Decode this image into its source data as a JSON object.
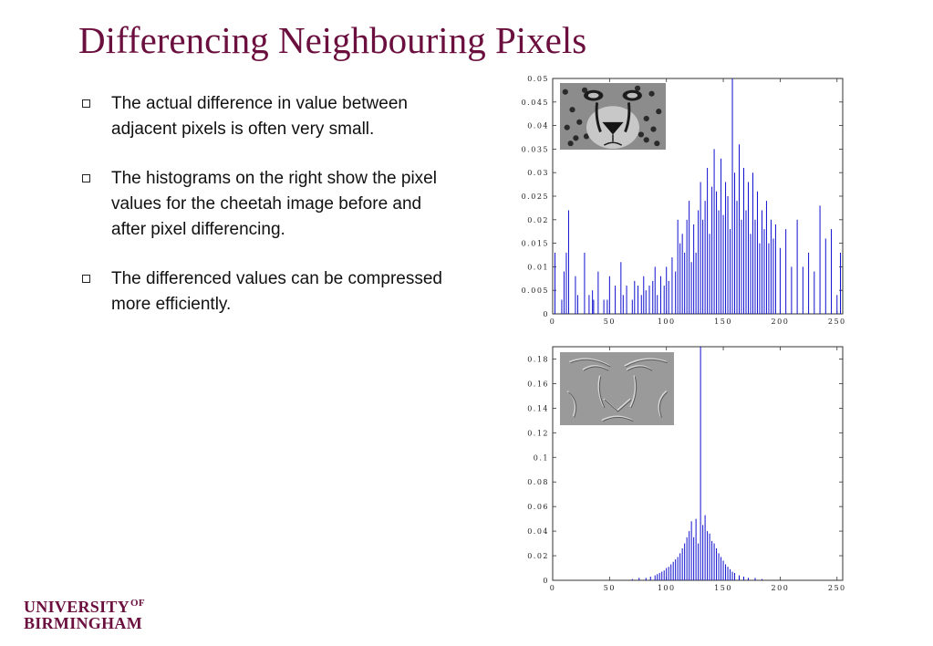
{
  "slide": {
    "title": "Differencing Neighbouring Pixels",
    "bullets": [
      "The actual difference in value between adjacent pixels is often very small.",
      "The histograms on the right show the pixel values for the cheetah image before and after pixel differencing.",
      "The differenced values can be compressed more efficiently."
    ]
  },
  "logo": {
    "line1": "UNIVERSITY",
    "of": "OF",
    "line2": "BIRMINGHAM"
  },
  "colors": {
    "title": "#6b0f3e",
    "bars": "#0000cc",
    "logo": "#6b0f3e"
  },
  "chart_data": [
    {
      "type": "bar",
      "title": "",
      "xlabel": "",
      "ylabel": "",
      "xlim": [
        0,
        255
      ],
      "ylim": [
        0,
        0.05
      ],
      "xticks": [
        0,
        50,
        100,
        150,
        200,
        250
      ],
      "yticks": [
        0,
        0.005,
        0.01,
        0.015,
        0.02,
        0.025,
        0.03,
        0.035,
        0.04,
        0.045,
        0.05
      ],
      "ytick_labels": [
        "0",
        "0.005",
        "0.01",
        "0.015",
        "0.02",
        "0.025",
        "0.03",
        "0.035",
        "0.04",
        "0.045",
        "0.05"
      ],
      "x": [
        2,
        8,
        10,
        12,
        14,
        20,
        22,
        28,
        32,
        35,
        36,
        40,
        45,
        48,
        50,
        55,
        60,
        62,
        65,
        70,
        72,
        75,
        78,
        80,
        82,
        85,
        88,
        90,
        92,
        95,
        98,
        100,
        102,
        105,
        108,
        110,
        112,
        114,
        116,
        118,
        120,
        122,
        124,
        126,
        128,
        130,
        132,
        134,
        136,
        138,
        140,
        142,
        144,
        146,
        148,
        150,
        152,
        154,
        156,
        158,
        160,
        162,
        164,
        166,
        168,
        170,
        172,
        174,
        176,
        178,
        180,
        182,
        184,
        186,
        188,
        190,
        192,
        194,
        196,
        200,
        205,
        210,
        215,
        220,
        225,
        230,
        235,
        240,
        245,
        250,
        253
      ],
      "values": [
        0.013,
        0.003,
        0.009,
        0.013,
        0.022,
        0.008,
        0.004,
        0.013,
        0.004,
        0.005,
        0.003,
        0.009,
        0.003,
        0.003,
        0.008,
        0.006,
        0.011,
        0.004,
        0.006,
        0.003,
        0.007,
        0.006,
        0.004,
        0.008,
        0.005,
        0.006,
        0.007,
        0.01,
        0.004,
        0.008,
        0.006,
        0.01,
        0.007,
        0.012,
        0.009,
        0.02,
        0.015,
        0.017,
        0.013,
        0.02,
        0.024,
        0.011,
        0.019,
        0.013,
        0.022,
        0.028,
        0.02,
        0.024,
        0.031,
        0.017,
        0.027,
        0.035,
        0.026,
        0.022,
        0.033,
        0.021,
        0.028,
        0.025,
        0.018,
        0.05,
        0.03,
        0.024,
        0.036,
        0.02,
        0.031,
        0.022,
        0.028,
        0.017,
        0.03,
        0.02,
        0.026,
        0.015,
        0.022,
        0.018,
        0.024,
        0.015,
        0.02,
        0.016,
        0.019,
        0.014,
        0.018,
        0.01,
        0.02,
        0.01,
        0.013,
        0.009,
        0.023,
        0.016,
        0.018,
        0.004,
        0.013
      ]
    },
    {
      "type": "bar",
      "title": "",
      "xlabel": "",
      "ylabel": "",
      "xlim": [
        0,
        255
      ],
      "ylim": [
        0,
        0.19
      ],
      "xticks": [
        0,
        50,
        100,
        150,
        200,
        250
      ],
      "yticks": [
        0,
        0.02,
        0.04,
        0.06,
        0.08,
        0.1,
        0.12,
        0.14,
        0.16,
        0.18
      ],
      "ytick_labels": [
        "0",
        "0.02",
        "0.04",
        "0.06",
        "0.08",
        "0.1",
        "0.12",
        "0.14",
        "0.16",
        "0.18"
      ],
      "x": [
        70,
        76,
        82,
        86,
        90,
        92,
        94,
        96,
        98,
        100,
        102,
        104,
        106,
        108,
        110,
        112,
        114,
        116,
        118,
        120,
        122,
        124,
        126,
        128,
        130,
        132,
        134,
        136,
        138,
        140,
        142,
        144,
        146,
        148,
        150,
        152,
        154,
        156,
        158,
        160,
        164,
        168,
        172,
        178,
        184
      ],
      "values": [
        0.001,
        0.002,
        0.002,
        0.003,
        0.004,
        0.005,
        0.006,
        0.007,
        0.008,
        0.01,
        0.011,
        0.013,
        0.015,
        0.017,
        0.019,
        0.022,
        0.026,
        0.03,
        0.035,
        0.04,
        0.048,
        0.035,
        0.05,
        0.03,
        0.19,
        0.045,
        0.053,
        0.04,
        0.038,
        0.032,
        0.03,
        0.026,
        0.022,
        0.019,
        0.016,
        0.013,
        0.011,
        0.009,
        0.007,
        0.006,
        0.004,
        0.003,
        0.002,
        0.002,
        0.001
      ]
    }
  ]
}
